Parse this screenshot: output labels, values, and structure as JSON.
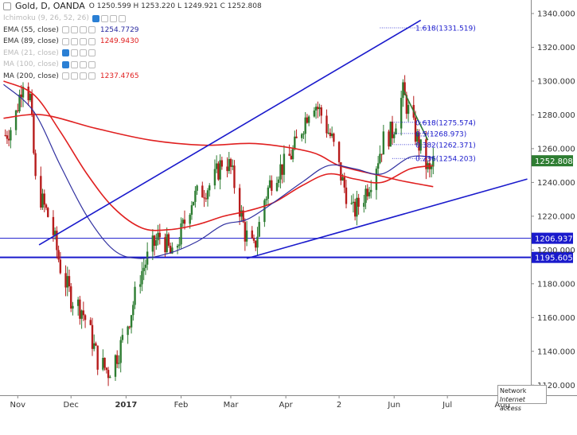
{
  "header": {
    "symbol": "Gold, D, OANDA",
    "ohlc": "O 1250.599 H 1253.220 L 1249.921 C 1252.808"
  },
  "indicators": [
    {
      "label": "Ichimoku (9, 26, 52, 26)",
      "value": "",
      "color": "#bbbbbb",
      "faded": true
    },
    {
      "label": "EMA (55, close)",
      "value": "1254.7729",
      "color": "#2a2aa0",
      "faded": false
    },
    {
      "label": "EMA (89, close)",
      "value": "1249.9430",
      "color": "#e02020",
      "faded": false
    },
    {
      "label": "EMA (21, close)",
      "value": "",
      "color": "#bbbbbb",
      "faded": true
    },
    {
      "label": "MA (100, close)",
      "value": "",
      "color": "#bbbbbb",
      "faded": true
    },
    {
      "label": "MA (200, close)",
      "value": "1237.4765",
      "color": "#e02020",
      "faded": false
    }
  ],
  "tooltip": {
    "line1": "Network",
    "line2": "Internet access"
  },
  "colors": {
    "up_candle": "#2e7d32",
    "down_candle": "#b71c1c",
    "trendline": "#1a1acc",
    "ema55": "#3030a0",
    "ema89": "#e02020",
    "ma200": "#e02020",
    "fib": "#1a1acc",
    "last_price_bg": "#2e7d32",
    "level_bg": "#1a1acc"
  },
  "chart_data": {
    "type": "candlestick",
    "x_labels": [
      "Nov",
      "Dec",
      "2017",
      "Feb",
      "Mar",
      "Apr",
      "2",
      "Jun",
      "Jul",
      "Aug"
    ],
    "y_ticks": [
      1120,
      1140,
      1160,
      1180,
      1200,
      1220,
      1240,
      1260,
      1280,
      1300,
      1320,
      1340
    ],
    "y_range": [
      1114,
      1348
    ],
    "last_price": "1252.808",
    "horizontal_levels": [
      {
        "label": "1206.937",
        "value": 1206.937
      },
      {
        "label": "1195.605",
        "value": 1195.605
      }
    ],
    "fib_levels": [
      {
        "label": "1.618(1331.519)",
        "value": 1331.519
      },
      {
        "label": "0.618(1275.574)",
        "value": 1275.574
      },
      {
        "label": "0.5(1268.973)",
        "value": 1268.973
      },
      {
        "label": "0.382(1262.371)",
        "value": 1262.371
      },
      {
        "label": "0.236(1254.203)",
        "value": 1254.203
      }
    ],
    "price_anchors": [
      [
        "2016-10-25",
        1268
      ],
      [
        "2016-10-30",
        1275
      ],
      [
        "2016-11-04",
        1302
      ],
      [
        "2016-11-08",
        1290
      ],
      [
        "2016-11-11",
        1240
      ],
      [
        "2016-11-15",
        1228
      ],
      [
        "2016-11-20",
        1215
      ],
      [
        "2016-11-25",
        1190
      ],
      [
        "2016-12-01",
        1172
      ],
      [
        "2016-12-07",
        1165
      ],
      [
        "2016-12-12",
        1150
      ],
      [
        "2016-12-16",
        1135
      ],
      [
        "2016-12-22",
        1128
      ],
      [
        "2016-12-28",
        1140
      ],
      [
        "2017-01-03",
        1160
      ],
      [
        "2017-01-09",
        1185
      ],
      [
        "2017-01-15",
        1200
      ],
      [
        "2017-01-21",
        1210
      ],
      [
        "2017-01-27",
        1195
      ],
      [
        "2017-02-01",
        1210
      ],
      [
        "2017-02-07",
        1230
      ],
      [
        "2017-02-13",
        1235
      ],
      [
        "2017-02-19",
        1240
      ],
      [
        "2017-02-25",
        1255
      ],
      [
        "2017-03-01",
        1248
      ],
      [
        "2017-03-05",
        1230
      ],
      [
        "2017-03-09",
        1210
      ],
      [
        "2017-03-14",
        1200
      ],
      [
        "2017-03-20",
        1230
      ],
      [
        "2017-03-25",
        1245
      ],
      [
        "2017-03-31",
        1250
      ],
      [
        "2017-04-05",
        1258
      ],
      [
        "2017-04-11",
        1275
      ],
      [
        "2017-04-16",
        1290
      ],
      [
        "2017-04-21",
        1280
      ],
      [
        "2017-04-27",
        1265
      ],
      [
        "2017-05-03",
        1240
      ],
      [
        "2017-05-09",
        1222
      ],
      [
        "2017-05-14",
        1230
      ],
      [
        "2017-05-20",
        1245
      ],
      [
        "2017-05-26",
        1265
      ],
      [
        "2017-05-31",
        1270
      ],
      [
        "2017-06-06",
        1293
      ],
      [
        "2017-06-11",
        1275
      ],
      [
        "2017-06-17",
        1256
      ],
      [
        "2017-06-21",
        1245
      ],
      [
        "2017-06-23",
        1252
      ]
    ],
    "ema55_points": [
      [
        "2016-10-24",
        1298
      ],
      [
        "2016-11-10",
        1282
      ],
      [
        "2016-11-25",
        1250
      ],
      [
        "2016-12-10",
        1220
      ],
      [
        "2016-12-25",
        1200
      ],
      [
        "2017-01-08",
        1195
      ],
      [
        "2017-01-25",
        1198
      ],
      [
        "2017-02-10",
        1205
      ],
      [
        "2017-02-25",
        1215
      ],
      [
        "2017-03-10",
        1218
      ],
      [
        "2017-03-25",
        1228
      ],
      [
        "2017-04-10",
        1240
      ],
      [
        "2017-04-25",
        1250
      ],
      [
        "2017-05-10",
        1248
      ],
      [
        "2017-05-25",
        1245
      ],
      [
        "2017-06-10",
        1255
      ],
      [
        "2017-06-23",
        1254.8
      ]
    ],
    "ema89_points": [
      [
        "2016-10-24",
        1300
      ],
      [
        "2016-11-10",
        1292
      ],
      [
        "2016-11-25",
        1270
      ],
      [
        "2016-12-10",
        1245
      ],
      [
        "2016-12-25",
        1225
      ],
      [
        "2017-01-10",
        1213
      ],
      [
        "2017-01-25",
        1212
      ],
      [
        "2017-02-10",
        1215
      ],
      [
        "2017-02-25",
        1220
      ],
      [
        "2017-03-10",
        1223
      ],
      [
        "2017-03-25",
        1228
      ],
      [
        "2017-04-10",
        1238
      ],
      [
        "2017-04-25",
        1245
      ],
      [
        "2017-05-10",
        1242
      ],
      [
        "2017-05-25",
        1240
      ],
      [
        "2017-06-10",
        1248
      ],
      [
        "2017-06-23",
        1249.9
      ]
    ],
    "ma200_points": [
      [
        "2016-10-24",
        1278
      ],
      [
        "2016-11-15",
        1280
      ],
      [
        "2016-12-15",
        1272
      ],
      [
        "2017-01-15",
        1265
      ],
      [
        "2017-02-15",
        1262
      ],
      [
        "2017-03-15",
        1263
      ],
      [
        "2017-04-15",
        1258
      ],
      [
        "2017-05-01",
        1250
      ],
      [
        "2017-05-20",
        1245
      ],
      [
        "2017-06-05",
        1241
      ],
      [
        "2017-06-23",
        1237.5
      ]
    ],
    "trendlines": [
      {
        "name": "upper",
        "from": [
          "2016-11-13",
          1203
        ],
        "to": [
          "2017-06-16",
          1336
        ]
      },
      {
        "name": "lower",
        "from": [
          "2017-03-10",
          1195
        ],
        "to": [
          "2017-08-15",
          1242
        ]
      },
      {
        "name": "down",
        "from": [
          "2017-06-06",
          1295
        ],
        "to": [
          "2017-06-20",
          1265
        ]
      }
    ]
  }
}
